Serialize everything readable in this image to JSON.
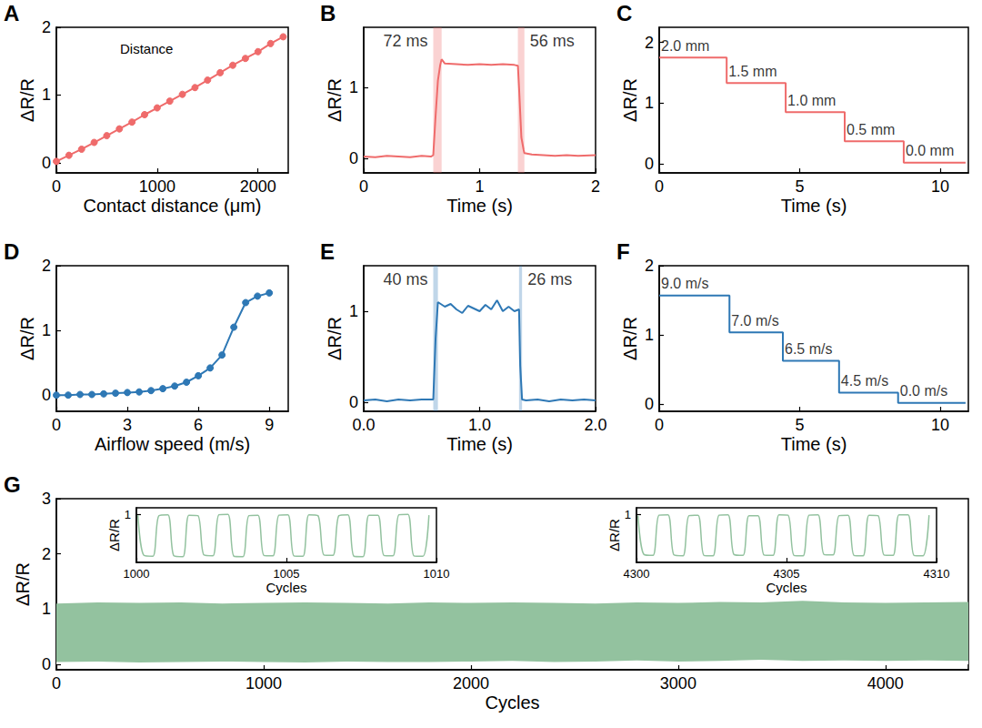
{
  "chart_data": [
    {
      "panel": "A",
      "type": "line",
      "marker": "circle",
      "color": "#ef6b6b",
      "x_label": "Contact distance (μm)",
      "y_label": "ΔR/R",
      "annotation": "Distance",
      "x": [
        0,
        125,
        250,
        375,
        500,
        625,
        750,
        875,
        1000,
        1125,
        1250,
        1375,
        1500,
        1625,
        1750,
        1875,
        2000,
        2125,
        2250
      ],
      "values": [
        0.02,
        0.11,
        0.2,
        0.3,
        0.4,
        0.5,
        0.6,
        0.71,
        0.81,
        0.91,
        1.01,
        1.11,
        1.22,
        1.33,
        1.44,
        1.54,
        1.64,
        1.76,
        1.86
      ],
      "xlim": [
        0,
        2300
      ],
      "xticks": [
        0,
        1000,
        2000
      ],
      "ylim": [
        -0.15,
        2
      ],
      "yticks": [
        0,
        1,
        2
      ]
    },
    {
      "panel": "B",
      "type": "line",
      "color": "#ef6b6b",
      "x_label": "Time (s)",
      "y_label": "ΔR/R",
      "x": [
        0,
        0.1,
        0.2,
        0.3,
        0.4,
        0.5,
        0.58,
        0.6,
        0.62,
        0.64,
        0.66,
        0.672,
        0.7,
        0.8,
        0.9,
        1.0,
        1.1,
        1.2,
        1.3,
        1.33,
        1.34,
        1.36,
        1.38,
        1.386,
        1.45,
        1.55,
        1.65,
        1.75,
        1.85,
        2.0
      ],
      "values": [
        0.03,
        0.02,
        0.04,
        0.03,
        0.02,
        0.04,
        0.03,
        0.05,
        0.6,
        1.1,
        1.32,
        1.4,
        1.34,
        1.33,
        1.32,
        1.33,
        1.32,
        1.33,
        1.32,
        1.31,
        1.0,
        0.3,
        0.12,
        0.08,
        0.06,
        0.05,
        0.04,
        0.05,
        0.04,
        0.05
      ],
      "bands": [
        {
          "start": 0.6,
          "end": 0.672,
          "label": "72 ms"
        },
        {
          "start": 1.33,
          "end": 1.386,
          "label": "56 ms"
        }
      ],
      "xlim": [
        0,
        2
      ],
      "xticks": [
        0,
        1,
        2
      ],
      "ylim": [
        -0.2,
        1.85
      ],
      "yticks": [
        0,
        1
      ]
    },
    {
      "panel": "C",
      "type": "step",
      "color": "#ef6b6b",
      "x_label": "Time (s)",
      "y_label": "ΔR/R",
      "steps": [
        {
          "start": 0,
          "end": 2.4,
          "value": 1.75,
          "label": "2.0 mm"
        },
        {
          "start": 2.4,
          "end": 4.5,
          "value": 1.33,
          "label": "1.5 mm"
        },
        {
          "start": 4.5,
          "end": 6.6,
          "value": 0.85,
          "label": "1.0 mm"
        },
        {
          "start": 6.6,
          "end": 8.7,
          "value": 0.37,
          "label": "0.5 mm"
        },
        {
          "start": 8.7,
          "end": 10.9,
          "value": 0.02,
          "label": "0.0 mm"
        }
      ],
      "xlim": [
        0,
        11
      ],
      "xticks": [
        0,
        5,
        10
      ],
      "ylim": [
        -0.15,
        2.25
      ],
      "yticks": [
        0,
        1,
        2
      ]
    },
    {
      "panel": "D",
      "type": "line",
      "marker": "circle",
      "color": "#2e78b5",
      "x_label": "Airflow speed (m/s)",
      "y_label": "ΔR/R",
      "x": [
        0,
        0.5,
        1,
        1.5,
        2,
        2.5,
        3,
        3.5,
        4,
        4.5,
        5,
        5.5,
        6,
        6.5,
        7,
        7.5,
        8,
        8.5,
        9
      ],
      "values": [
        0.0,
        0.0,
        0.01,
        0.01,
        0.02,
        0.03,
        0.04,
        0.05,
        0.07,
        0.1,
        0.14,
        0.2,
        0.3,
        0.42,
        0.62,
        1.05,
        1.43,
        1.53,
        1.58
      ],
      "xlim": [
        0,
        9.8
      ],
      "xticks": [
        0,
        3,
        6,
        9
      ],
      "ylim": [
        -0.25,
        2
      ],
      "yticks": [
        0,
        1,
        2
      ]
    },
    {
      "panel": "E",
      "type": "line",
      "color": "#2e78b5",
      "x_label": "Time (s)",
      "y_label": "ΔR/R",
      "x": [
        0,
        0.1,
        0.2,
        0.3,
        0.4,
        0.5,
        0.6,
        0.62,
        0.64,
        0.7,
        0.75,
        0.8,
        0.85,
        0.9,
        0.95,
        1.0,
        1.05,
        1.1,
        1.15,
        1.2,
        1.25,
        1.3,
        1.34,
        1.35,
        1.366,
        1.4,
        1.5,
        1.6,
        1.7,
        1.8,
        1.9,
        2.0
      ],
      "values": [
        0.02,
        0.03,
        0.01,
        0.03,
        0.02,
        0.03,
        0.03,
        0.7,
        1.1,
        1.05,
        1.08,
        1.02,
        0.98,
        1.06,
        1.03,
        1.0,
        1.07,
        1.02,
        1.12,
        1.0,
        1.05,
        1.0,
        1.02,
        0.4,
        0.03,
        0.02,
        0.03,
        0.01,
        0.03,
        0.02,
        0.03,
        0.02
      ],
      "bands": [
        {
          "start": 0.6,
          "end": 0.64,
          "label": "40 ms"
        },
        {
          "start": 1.34,
          "end": 1.366,
          "label": "26 ms"
        }
      ],
      "xlim": [
        0,
        2
      ],
      "xticks": [
        {
          "value": 0,
          "label": "0.0"
        },
        {
          "value": 1,
          "label": "1.0"
        },
        {
          "value": 2,
          "label": "2.0"
        }
      ],
      "ylim": [
        -0.1,
        1.5
      ],
      "yticks": [
        0,
        1
      ]
    },
    {
      "panel": "F",
      "type": "step",
      "color": "#2e78b5",
      "x_label": "Time (s)",
      "y_label": "ΔR/R",
      "steps": [
        {
          "start": 0,
          "end": 2.5,
          "value": 1.57,
          "label": "9.0 m/s"
        },
        {
          "start": 2.5,
          "end": 4.4,
          "value": 1.04,
          "label": "7.0 m/s"
        },
        {
          "start": 4.4,
          "end": 6.4,
          "value": 0.63,
          "label": "6.5 m/s"
        },
        {
          "start": 6.4,
          "end": 8.5,
          "value": 0.17,
          "label": "4.5 m/s"
        },
        {
          "start": 8.5,
          "end": 10.9,
          "value": 0.02,
          "label": "0.0 m/s"
        }
      ],
      "xlim": [
        0,
        11
      ],
      "xticks": [
        0,
        5,
        10
      ],
      "ylim": [
        -0.1,
        2
      ],
      "yticks": [
        0,
        1,
        2
      ]
    },
    {
      "panel": "G",
      "type": "band",
      "color": "#93c29f",
      "x_label": "Cycles",
      "y_label": "ΔR/R",
      "x": [
        0,
        200,
        400,
        600,
        800,
        1000,
        1200,
        1400,
        1600,
        1800,
        2000,
        2200,
        2400,
        2600,
        2800,
        3000,
        3200,
        3400,
        3600,
        3800,
        4000,
        4200,
        4400
      ],
      "upper": [
        1.1,
        1.12,
        1.11,
        1.12,
        1.1,
        1.11,
        1.12,
        1.11,
        1.1,
        1.12,
        1.11,
        1.12,
        1.11,
        1.1,
        1.12,
        1.11,
        1.13,
        1.12,
        1.15,
        1.12,
        1.11,
        1.12,
        1.13
      ],
      "lower": [
        0.04,
        0.05,
        0.03,
        0.04,
        0.05,
        0.04,
        0.03,
        0.05,
        0.04,
        0.04,
        0.05,
        0.06,
        0.04,
        0.05,
        0.07,
        0.05,
        0.06,
        0.08,
        0.06,
        0.07,
        0.06,
        0.07,
        0.06
      ],
      "xlim": [
        0,
        4400
      ],
      "xticks": [
        0,
        1000,
        2000,
        3000,
        4000
      ],
      "ylim": [
        -0.1,
        3
      ],
      "yticks": [
        0,
        1,
        2,
        3
      ],
      "insets": [
        {
          "type": "line",
          "x_label": "Cycles",
          "y_label": "ΔR/R",
          "x": [
            1000.05,
            1000.25,
            1000.55,
            1000.75,
            1001.05,
            1001.25,
            1001.55,
            1001.75,
            1002.05,
            1002.25,
            1002.55,
            1002.75,
            1003.05,
            1003.25,
            1003.55,
            1003.75,
            1004.05,
            1004.25,
            1004.55,
            1004.75,
            1005.05,
            1005.25,
            1005.55,
            1005.75,
            1006.05,
            1006.25,
            1006.55,
            1006.75,
            1007.05,
            1007.25,
            1007.55,
            1007.75,
            1008.05,
            1008.25,
            1008.55,
            1008.75,
            1009.05,
            1009.25,
            1009.55,
            1009.75
          ],
          "values": [
            0.98,
            0.06,
            0.04,
            0.97,
            0.99,
            0.05,
            0.03,
            0.98,
            0.97,
            0.07,
            0.05,
            0.99,
            1.0,
            0.04,
            0.03,
            0.97,
            0.98,
            0.06,
            0.05,
            0.98,
            0.99,
            0.05,
            0.04,
            0.99,
            0.97,
            0.07,
            0.06,
            0.97,
            0.99,
            0.04,
            0.03,
            0.98,
            0.98,
            0.06,
            0.05,
            0.99,
            1.0,
            0.05,
            0.04,
            0.98
          ],
          "xlim": [
            1000,
            1010
          ],
          "xticks": [
            1000,
            1005,
            1010
          ],
          "ylim": [
            -0.1,
            1.15
          ],
          "yticks": [
            1
          ]
        },
        {
          "type": "line",
          "x_label": "Cycles",
          "y_label": "ΔR/R",
          "x": [
            4300.05,
            4300.25,
            4300.55,
            4300.75,
            4301.05,
            4301.25,
            4301.55,
            4301.75,
            4302.05,
            4302.25,
            4302.55,
            4302.75,
            4303.05,
            4303.25,
            4303.55,
            4303.75,
            4304.05,
            4304.25,
            4304.55,
            4304.75,
            4305.05,
            4305.25,
            4305.55,
            4305.75,
            4306.05,
            4306.25,
            4306.55,
            4306.75,
            4307.05,
            4307.25,
            4307.55,
            4307.75,
            4308.05,
            4308.25,
            4308.55,
            4308.75,
            4309.05,
            4309.25,
            4309.55,
            4309.75
          ],
          "values": [
            0.97,
            0.08,
            0.06,
            0.98,
            0.99,
            0.07,
            0.05,
            0.97,
            0.98,
            0.06,
            0.05,
            0.98,
            0.99,
            0.08,
            0.06,
            0.97,
            0.97,
            0.07,
            0.06,
            0.99,
            0.98,
            0.06,
            0.05,
            0.98,
            0.99,
            0.08,
            0.07,
            0.97,
            0.98,
            0.06,
            0.05,
            0.98,
            0.97,
            0.07,
            0.06,
            0.99,
            0.99,
            0.06,
            0.05,
            0.98
          ],
          "xlim": [
            4300,
            4310
          ],
          "xticks": [
            4300,
            4305,
            4310
          ],
          "ylim": [
            -0.1,
            1.15
          ],
          "yticks": [
            1
          ]
        }
      ]
    }
  ]
}
